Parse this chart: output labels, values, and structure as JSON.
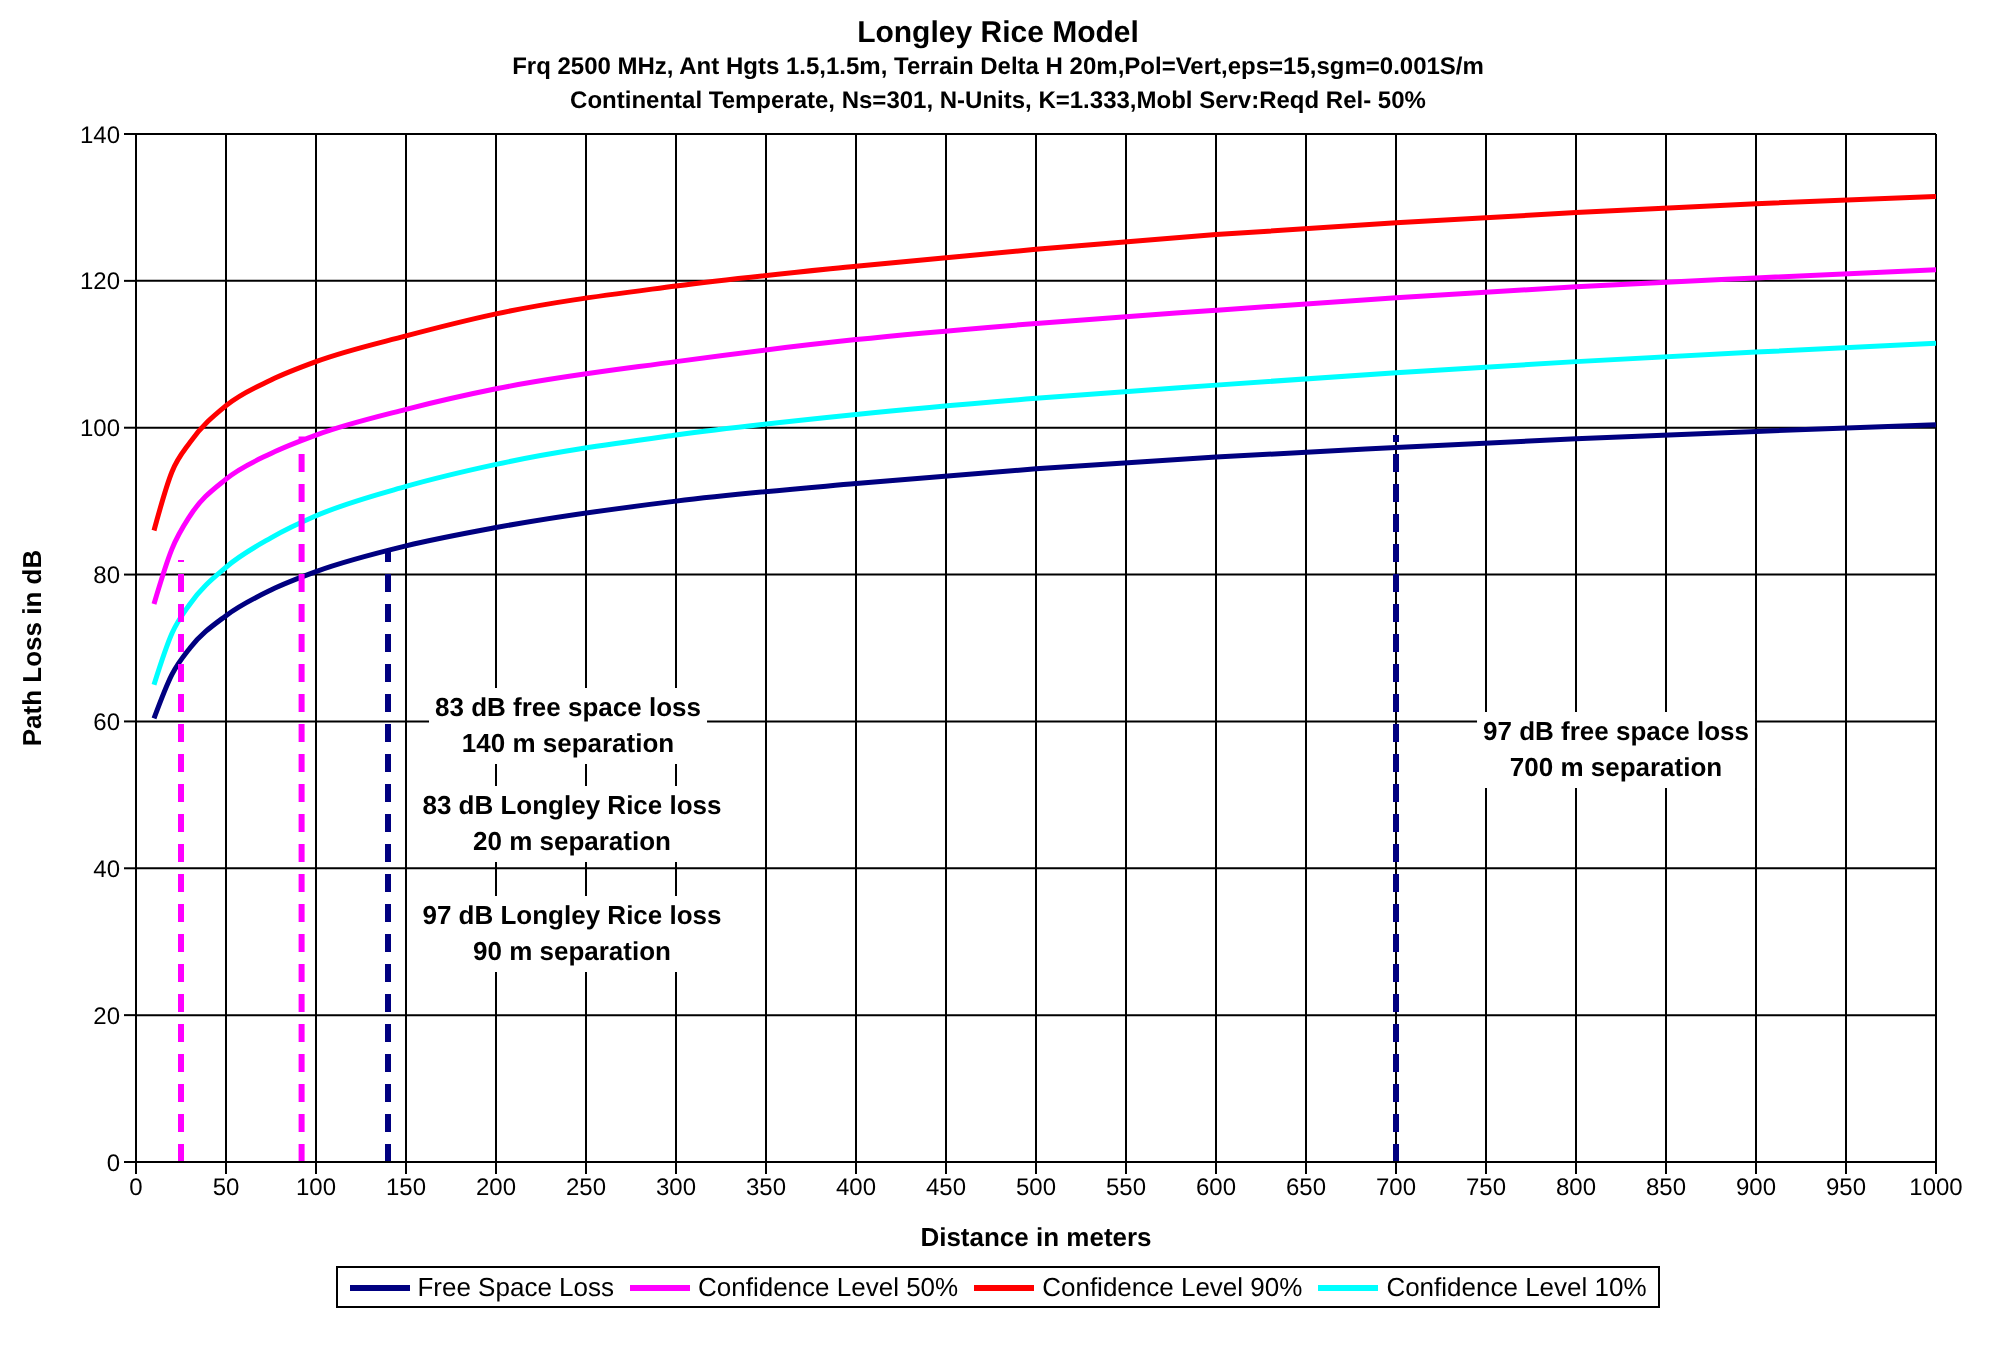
{
  "chart_data": {
    "type": "line",
    "title": "Longley Rice Model",
    "subtitle": "Frq 2500 MHz, Ant Hgts 1.5,1.5m, Terrain Delta H 20m,Pol=Vert,eps=15,sgm=0.001S/m\nContinental Temperate, Ns=301, N-Units, K=1.333,Mobl Serv:Reqd Rel- 50%",
    "xlabel": "Distance in meters",
    "ylabel": "Path Loss in dB",
    "x": [
      10,
      20,
      30,
      50,
      75,
      100,
      150,
      200,
      300,
      400,
      500,
      600,
      700,
      800,
      900,
      1000
    ],
    "series": [
      {
        "name": "Free Space Loss",
        "color": "#000080",
        "values": [
          60.4,
          66.4,
          70,
          74.4,
          77.9,
          80.4,
          83.9,
          86.4,
          90,
          92.4,
          94.4,
          96,
          97.3,
          98.5,
          99.5,
          100.4
        ]
      },
      {
        "name": "Confidence Level 50%",
        "color": "#ff00ff",
        "values": [
          76,
          83.5,
          88,
          93,
          96.5,
          99,
          102.5,
          105.3,
          109,
          112,
          114.2,
          116,
          117.7,
          119.2,
          120.4,
          121.5
        ]
      },
      {
        "name": "Confidence Level 90%",
        "color": "#ff0000",
        "values": [
          86,
          94,
          98,
          103,
          106.5,
          109,
          112.5,
          115.5,
          119.3,
          122,
          124.3,
          126.3,
          127.9,
          129.3,
          130.5,
          131.5
        ]
      },
      {
        "name": "Confidence Level 10%",
        "color": "#00ffff",
        "values": [
          65,
          72,
          76,
          81,
          85,
          88,
          92,
          95,
          99,
          101.8,
          104,
          105.8,
          107.5,
          109,
          110.3,
          111.5
        ]
      },
      {
        "type": "line",
        "color": "#ff00ff",
        "line_style": "dashed",
        "x": [
          25,
          25
        ],
        "values": [
          0,
          82
        ]
      },
      {
        "type": "line",
        "color": "#ff00ff",
        "line_style": "dashed",
        "x": [
          92,
          92
        ],
        "values": [
          0,
          98.8
        ]
      },
      {
        "type": "line",
        "color": "#000080",
        "line_style": "dashed",
        "x": [
          140,
          140
        ],
        "values": [
          0,
          83.4
        ]
      },
      {
        "type": "line",
        "color": "#000080",
        "line_style": "dashed",
        "x": [
          700,
          700
        ],
        "values": [
          0,
          99
        ]
      }
    ],
    "xlim": [
      0,
      1000
    ],
    "xticks": [
      0,
      50,
      100,
      150,
      200,
      250,
      300,
      350,
      400,
      450,
      500,
      550,
      600,
      650,
      700,
      750,
      800,
      850,
      900,
      950,
      1000
    ],
    "ylim": [
      0,
      140
    ],
    "yticks": [
      0,
      20,
      40,
      60,
      80,
      100,
      120,
      140
    ],
    "grid": true,
    "legend": "bottom",
    "marker": "none",
    "line_style": "solid",
    "annotations": [
      "83 dB free space loss\n140 m separation",
      "83 dB Longley Rice loss\n20 m separation",
      "97 dB Longley Rice loss\n90 m separation",
      "97 dB free space loss\n700 m separation"
    ]
  }
}
